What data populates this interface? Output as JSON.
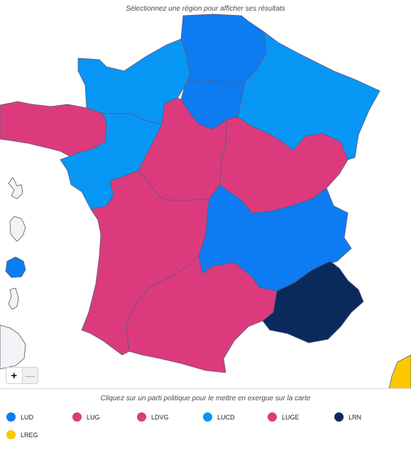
{
  "header": {
    "instruction": "Sélectionnez une région pour afficher ses résultats"
  },
  "footer": {
    "instruction": "Cliquez sur un parti politique pour le mettre en exergue sur la carte"
  },
  "zoom": {
    "in_label": "+",
    "out_label": "—"
  },
  "colors": {
    "LUD": "#0d7bf2",
    "LUG": "#db3b7d",
    "LDVG": "#db3b7d",
    "LUCD": "#0896f5",
    "LUGE": "#db3b7d",
    "LRN": "#0a2a5e",
    "LREG": "#fbc800",
    "outremer_neutral": "#f2f3f6"
  },
  "legend": [
    {
      "code": "LUD",
      "label": "LUD",
      "color": "#0d7bf2"
    },
    {
      "code": "LUG",
      "label": "LUG",
      "color": "#db3b7d"
    },
    {
      "code": "LDVG",
      "label": "LDVG",
      "color": "#db3b7d"
    },
    {
      "code": "LUCD",
      "label": "LUCD",
      "color": "#0896f5"
    },
    {
      "code": "LUGE",
      "label": "LUGE",
      "color": "#db3b7d"
    },
    {
      "code": "LRN",
      "label": "LRN",
      "color": "#0a2a5e"
    },
    {
      "code": "LREG",
      "label": "LREG",
      "color": "#fbc800"
    }
  ],
  "regions": [
    {
      "id": "hauts-de-france",
      "party": "LUD"
    },
    {
      "id": "normandie",
      "party": "LUCD"
    },
    {
      "id": "grand-est",
      "party": "LUCD"
    },
    {
      "id": "ile-de-france",
      "party": "LUD"
    },
    {
      "id": "bretagne",
      "party": "LUG"
    },
    {
      "id": "pays-de-la-loire",
      "party": "LUCD"
    },
    {
      "id": "centre-val-de-loire",
      "party": "LUG"
    },
    {
      "id": "bourgogne-franche-comte",
      "party": "LUG"
    },
    {
      "id": "nouvelle-aquitaine",
      "party": "LUG"
    },
    {
      "id": "auvergne-rhone-alpes",
      "party": "LUD"
    },
    {
      "id": "occitanie",
      "party": "LUG"
    },
    {
      "id": "provence-alpes-cote-d-azur",
      "party": "LRN"
    },
    {
      "id": "corse",
      "party": "LREG"
    },
    {
      "id": "guadeloupe",
      "party": ""
    },
    {
      "id": "martinique",
      "party": ""
    },
    {
      "id": "la-reunion",
      "party": "LUD"
    },
    {
      "id": "mayotte",
      "party": ""
    },
    {
      "id": "guyane",
      "party": ""
    }
  ]
}
